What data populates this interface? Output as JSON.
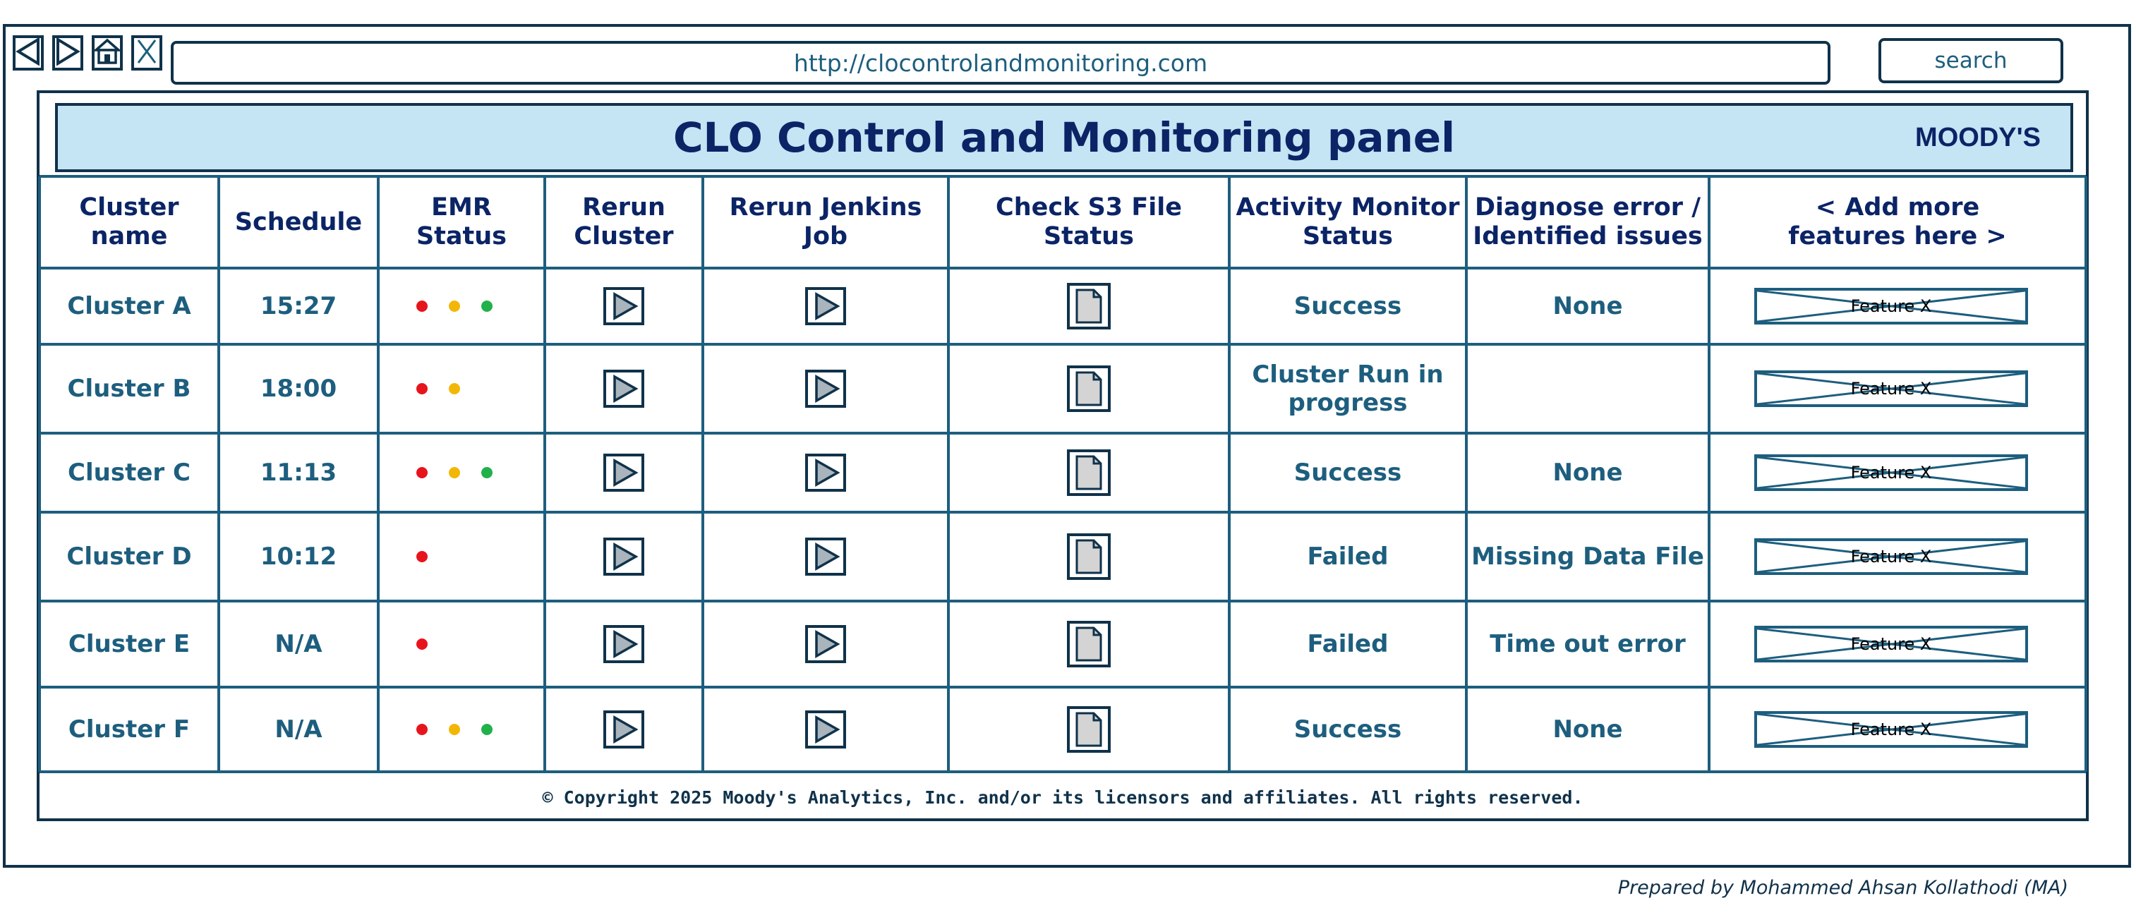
{
  "browser": {
    "url": "http://clocontrolandmonitoring.com",
    "search_label": "search",
    "nav_icons": [
      "back-icon",
      "forward-icon",
      "home-icon",
      "close-icon"
    ]
  },
  "header": {
    "title": "CLO Control and Monitoring panel",
    "brand": "MOODY'S"
  },
  "table": {
    "columns": [
      "Cluster name",
      "Schedule",
      "EMR\nStatus",
      "Rerun\nCluster",
      "Rerun Jenkins\nJob",
      "Check S3 File\nStatus",
      "Activity Monitor\nStatus",
      "Diagnose error /\nIdentified issues",
      "< Add more\nfeatures here >"
    ],
    "rows": [
      {
        "name": "Cluster A",
        "schedule": "15:27",
        "emr": [
          "red",
          "yellow",
          "green"
        ],
        "activity": "Success",
        "issue": "None",
        "feature": "Feature X"
      },
      {
        "name": "Cluster B",
        "schedule": "18:00",
        "emr": [
          "red",
          "yellow"
        ],
        "activity": "Cluster Run in\nprogress",
        "issue": "",
        "feature": "Feature X"
      },
      {
        "name": "Cluster C",
        "schedule": "11:13",
        "emr": [
          "red",
          "yellow",
          "green"
        ],
        "activity": "Success",
        "issue": "None",
        "feature": "Feature X"
      },
      {
        "name": "Cluster D",
        "schedule": "10:12",
        "emr": [
          "red"
        ],
        "activity": "Failed",
        "issue": "Missing Data File",
        "feature": "Feature X"
      },
      {
        "name": "Cluster E",
        "schedule": "N/A",
        "emr": [
          "red"
        ],
        "activity": "Failed",
        "issue": "Time out error",
        "feature": "Feature X"
      },
      {
        "name": "Cluster F",
        "schedule": "N/A",
        "emr": [
          "red",
          "yellow",
          "green"
        ],
        "activity": "Success",
        "issue": "None",
        "feature": "Feature X"
      }
    ]
  },
  "colors": {
    "red": "#e8141c",
    "yellow": "#f2b705",
    "green": "#21b14b",
    "title_bg": "#c5e4f4",
    "grid": "#1d5e7e",
    "title_text": "#0b2466"
  },
  "footer": {
    "copyright": "© Copyright 2025 Moody's Analytics, Inc. and/or its licensors and affiliates. All rights reserved.",
    "prepared_by": "Prepared by Mohammed Ahsan Kollathodi (MA)"
  }
}
